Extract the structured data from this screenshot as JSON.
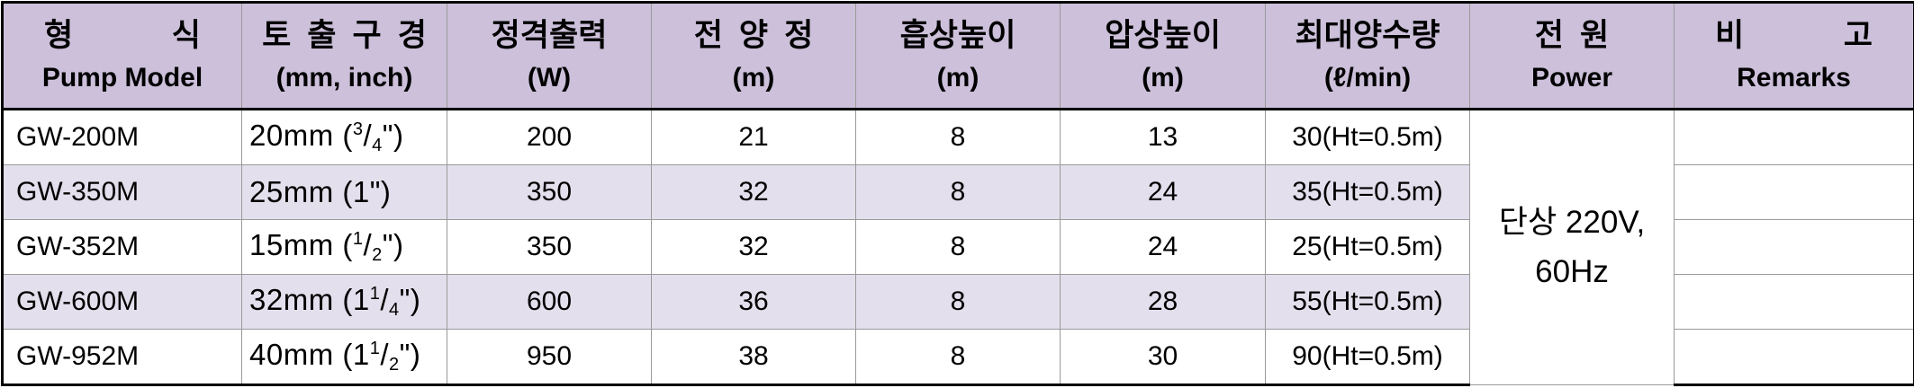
{
  "header": {
    "model": {
      "ko_left": "형",
      "ko_right": "식",
      "en": "Pump Model"
    },
    "outlet": {
      "ko": "토출구경",
      "en": "(mm, inch)"
    },
    "output": {
      "ko": "정격출력",
      "en": "(W)"
    },
    "head": {
      "ko": "전양정",
      "en": "(m)"
    },
    "suction": {
      "ko": "흡상높이",
      "en": "(m)"
    },
    "pressure": {
      "ko": "압상높이",
      "en": "(m)"
    },
    "flow": {
      "ko": "최대양수량",
      "en": "(ℓ/min)"
    },
    "power": {
      "ko": "전원",
      "en": "Power"
    },
    "remarks": {
      "ko_left": "비",
      "ko_right": "고",
      "en": "Remarks"
    }
  },
  "rows": [
    {
      "model": "GW-200M",
      "size_mm": "20mm (",
      "frac_whole": "",
      "frac_num": "3",
      "frac_den": "4",
      "size_end": "\")",
      "output": "200",
      "head": "21",
      "suction": "8",
      "pressure": "13",
      "flow": "30(Ht=0.5m)",
      "remarks": ""
    },
    {
      "model": "GW-350M",
      "size_mm": "25mm (1\")",
      "frac_whole": "",
      "frac_num": "",
      "frac_den": "",
      "size_end": "",
      "output": "350",
      "head": "32",
      "suction": "8",
      "pressure": "24",
      "flow": "35(Ht=0.5m)",
      "remarks": ""
    },
    {
      "model": "GW-352M",
      "size_mm": "15mm (",
      "frac_whole": "",
      "frac_num": "1",
      "frac_den": "2",
      "size_end": "\")",
      "output": "350",
      "head": "32",
      "suction": "8",
      "pressure": "24",
      "flow": "25(Ht=0.5m)",
      "remarks": ""
    },
    {
      "model": "GW-600M",
      "size_mm": "32mm (",
      "frac_whole": "1",
      "frac_num": "1",
      "frac_den": "4",
      "size_end": "\")",
      "output": "600",
      "head": "36",
      "suction": "8",
      "pressure": "28",
      "flow": "55(Ht=0.5m)",
      "remarks": ""
    },
    {
      "model": "GW-952M",
      "size_mm": "40mm (",
      "frac_whole": "1",
      "frac_num": "1",
      "frac_den": "2",
      "size_end": "\")",
      "output": "950",
      "head": "38",
      "suction": "8",
      "pressure": "30",
      "flow": "90(Ht=0.5m)",
      "remarks": ""
    }
  ],
  "power_value": {
    "line1": "단상 220V,",
    "line2": "60Hz"
  },
  "colors": {
    "header_bg": "#ccc0da",
    "alt_row_bg": "#e4dfec"
  }
}
